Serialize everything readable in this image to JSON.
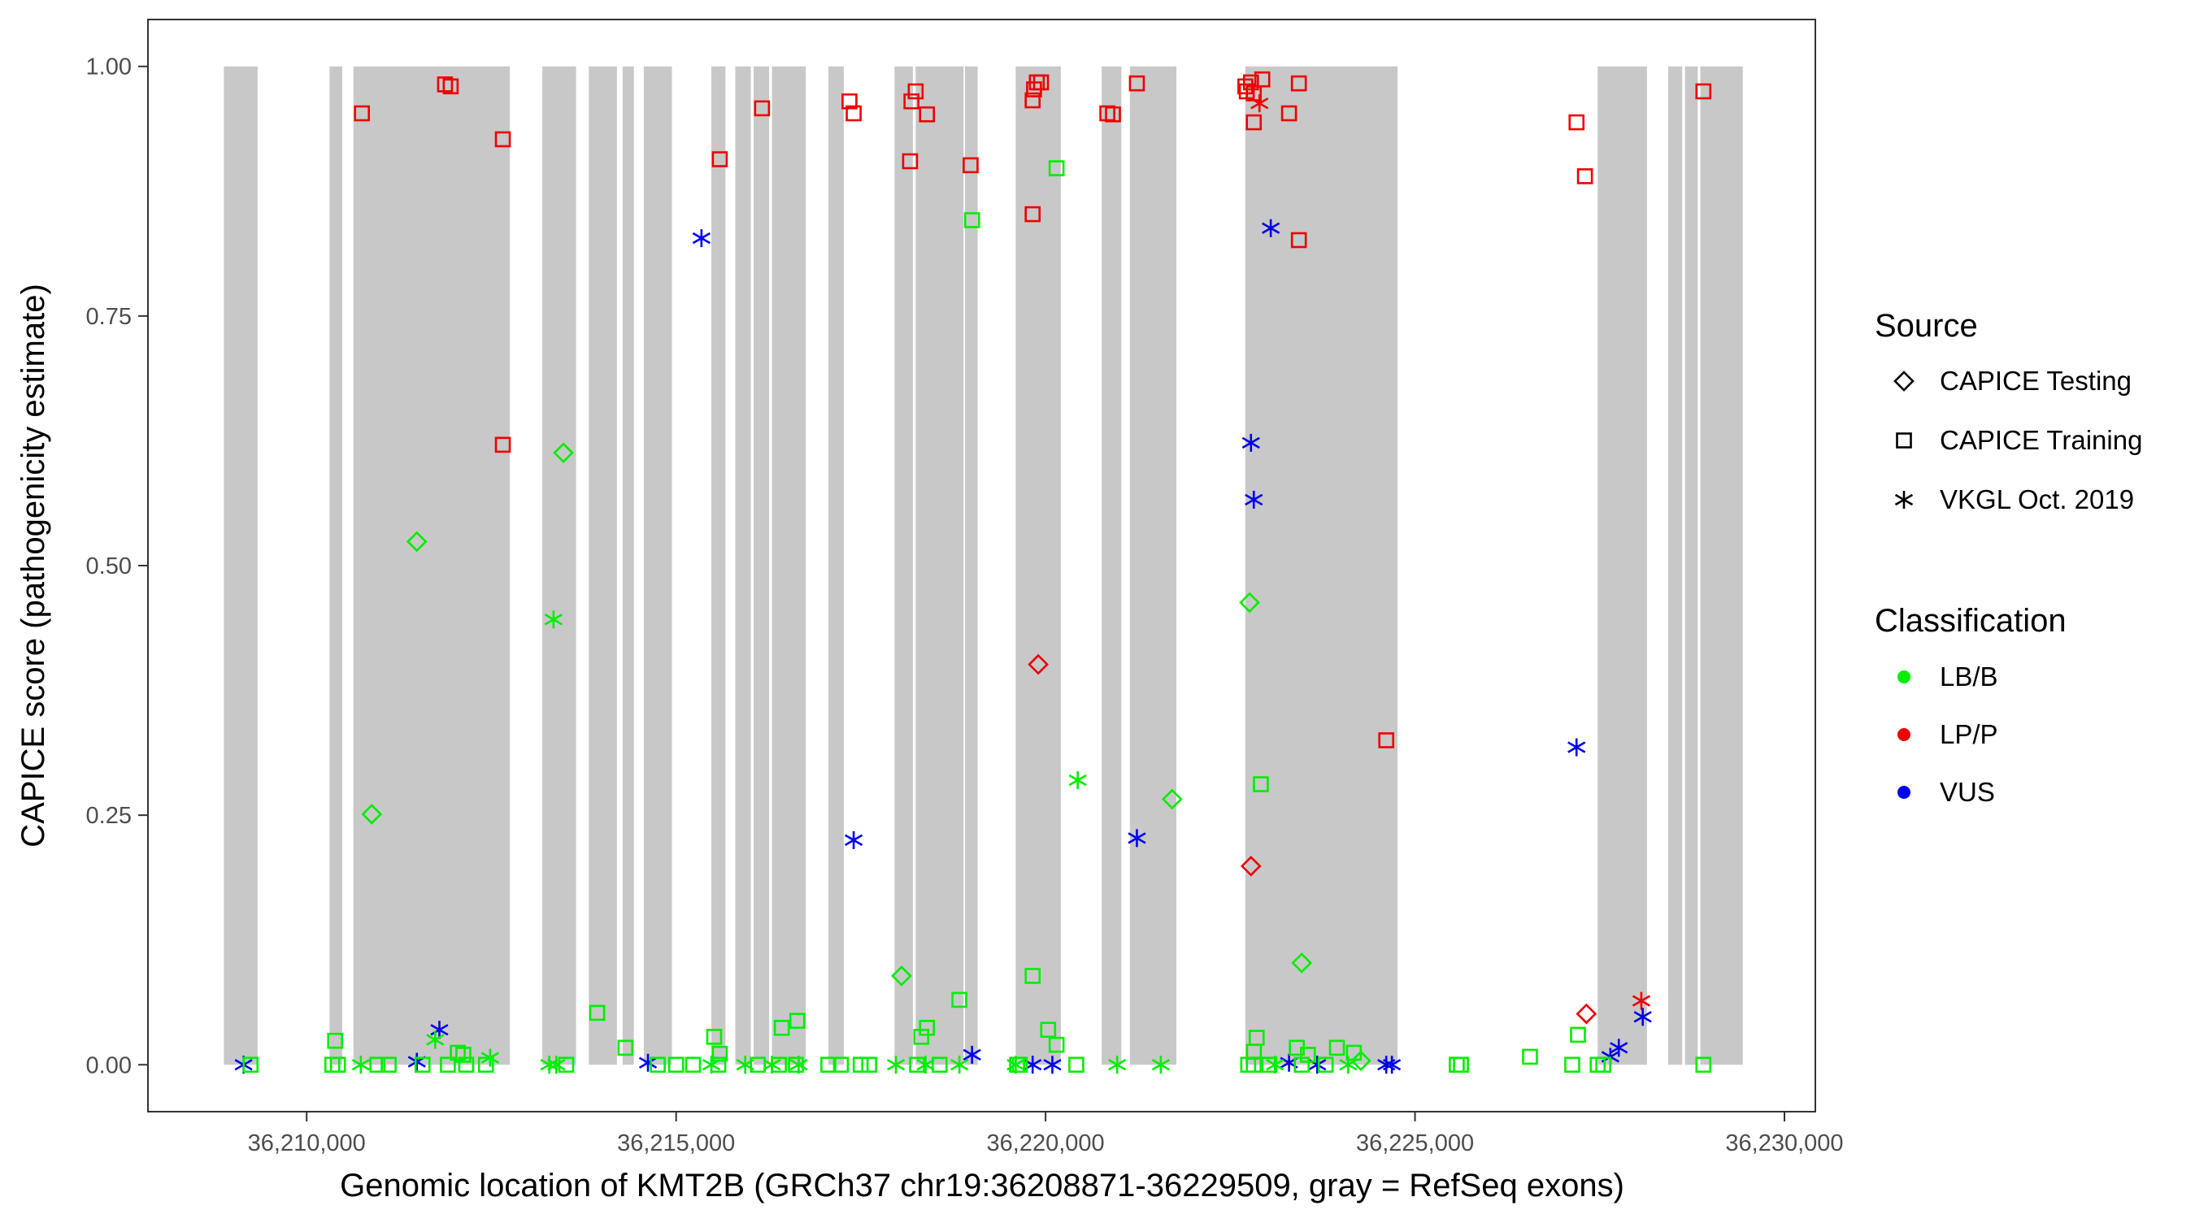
{
  "chart_data": {
    "type": "scatter",
    "title": "",
    "xlabel": "Genomic location of KMT2B (GRCh37 chr19:36208871-36229509, gray = RefSeq exons)",
    "ylabel": "CAPICE score (pathogenicity estimate)",
    "xlim": [
      36207852,
      36230418
    ],
    "ylim": [
      -0.047,
      1.047
    ],
    "x_ticks": [
      36210000,
      36215000,
      36220000,
      36225000,
      36230000
    ],
    "x_tick_labels": [
      "36,210,000",
      "36,215,000",
      "36,220,000",
      "36,225,000",
      "36,230,000"
    ],
    "y_ticks": [
      0,
      0.25,
      0.5,
      0.75,
      1.0
    ],
    "y_tick_labels": [
      "0.00",
      "0.25",
      "0.50",
      "0.75",
      "1.00"
    ],
    "grid": false,
    "legend_position": "right",
    "legend": {
      "source_title": "Source",
      "sources": [
        {
          "key": "testing",
          "label": "CAPICE Testing",
          "shape": "diamond"
        },
        {
          "key": "training",
          "label": "CAPICE Training",
          "shape": "square"
        },
        {
          "key": "vkgl",
          "label": "VKGL Oct. 2019",
          "shape": "asterisk"
        }
      ],
      "classification_title": "Classification",
      "classes": [
        {
          "key": "LB/B",
          "label": "LB/B",
          "color": "#00ee00"
        },
        {
          "key": "LP/P",
          "label": "LP/P",
          "color": "#ee0000"
        },
        {
          "key": "VUS",
          "label": "VUS",
          "color": "#0000ee"
        }
      ]
    },
    "exon_color": "#c8c8c8",
    "exons": [
      [
        36208879,
        36209336
      ],
      [
        36210309,
        36210481
      ],
      [
        36210633,
        36212750
      ],
      [
        36213189,
        36213646
      ],
      [
        36213818,
        36214199
      ],
      [
        36214276,
        36214428
      ],
      [
        36214562,
        36214943
      ],
      [
        36215477,
        36215668
      ],
      [
        36215801,
        36216011
      ],
      [
        36216049,
        36216259
      ],
      [
        36216297,
        36216755
      ],
      [
        36217060,
        36217269
      ],
      [
        36217956,
        36218204
      ],
      [
        36218242,
        36218890
      ],
      [
        36218909,
        36219081
      ],
      [
        36219596,
        36220206
      ],
      [
        36220759,
        36221026
      ],
      [
        36221141,
        36221770
      ],
      [
        36222704,
        36224764
      ],
      [
        36227472,
        36228139
      ],
      [
        36228426,
        36228616
      ],
      [
        36228654,
        36228826
      ],
      [
        36228862,
        36229436
      ]
    ],
    "series": [
      {
        "source": "training",
        "class": "LP/P",
        "points": [
          [
            36210748,
            0.953
          ],
          [
            36211873,
            0.982
          ],
          [
            36211949,
            0.98
          ],
          [
            36212655,
            0.927
          ],
          [
            36212655,
            0.621
          ],
          [
            36215591,
            0.907
          ],
          [
            36216163,
            0.958
          ],
          [
            36217346,
            0.965
          ],
          [
            36217403,
            0.953
          ],
          [
            36218166,
            0.905
          ],
          [
            36218185,
            0.965
          ],
          [
            36218242,
            0.975
          ],
          [
            36218395,
            0.952
          ],
          [
            36218986,
            0.901
          ],
          [
            36219825,
            0.852
          ],
          [
            36219825,
            0.966
          ],
          [
            36219844,
            0.977
          ],
          [
            36219882,
            0.984
          ],
          [
            36219939,
            0.984
          ],
          [
            36220836,
            0.953
          ],
          [
            36220912,
            0.952
          ],
          [
            36221236,
            0.983
          ],
          [
            36222704,
            0.98
          ],
          [
            36222723,
            0.975
          ],
          [
            36222780,
            0.984
          ],
          [
            36222818,
            0.973
          ],
          [
            36222818,
            0.944
          ],
          [
            36222933,
            0.987
          ],
          [
            36223295,
            0.953
          ],
          [
            36223428,
            0.983
          ],
          [
            36223428,
            0.826
          ],
          [
            36224611,
            0.325
          ],
          [
            36227186,
            0.944
          ],
          [
            36227300,
            0.89
          ],
          [
            36228903,
            0.975
          ]
        ]
      },
      {
        "source": "testing",
        "class": "LP/P",
        "points": [
          [
            36219901,
            0.401
          ],
          [
            36222780,
            0.199
          ],
          [
            36227319,
            0.051
          ]
        ]
      },
      {
        "source": "vkgl",
        "class": "LP/P",
        "points": [
          [
            36222895,
            0.963
          ],
          [
            36228063,
            0.064
          ]
        ]
      },
      {
        "source": "vkgl",
        "class": "VUS",
        "points": [
          [
            36209146,
            0.0
          ],
          [
            36211491,
            0.003
          ],
          [
            36211796,
            0.035
          ],
          [
            36214619,
            0.002
          ],
          [
            36215343,
            0.828
          ],
          [
            36217403,
            0.225
          ],
          [
            36219005,
            0.01
          ],
          [
            36219825,
            0.0
          ],
          [
            36220092,
            0.0
          ],
          [
            36221236,
            0.227
          ],
          [
            36222780,
            0.623
          ],
          [
            36222818,
            0.566
          ],
          [
            36223048,
            0.838
          ],
          [
            36223295,
            0.002
          ],
          [
            36223677,
            0.0
          ],
          [
            36224611,
            0.0
          ],
          [
            36224687,
            0.0
          ],
          [
            36227186,
            0.318
          ],
          [
            36227644,
            0.008
          ],
          [
            36227758,
            0.017
          ],
          [
            36228082,
            0.048
          ]
        ]
      },
      {
        "source": "testing",
        "class": "LB/B",
        "points": [
          [
            36210881,
            0.251
          ],
          [
            36211491,
            0.524
          ],
          [
            36213475,
            0.613
          ],
          [
            36218051,
            0.089
          ],
          [
            36221713,
            0.266
          ],
          [
            36222761,
            0.463
          ],
          [
            36223467,
            0.102
          ],
          [
            36224267,
            0.004
          ]
        ]
      },
      {
        "source": "vkgl",
        "class": "LB/B",
        "points": [
          [
            36213341,
            0.446
          ],
          [
            36211739,
            0.025
          ],
          [
            36220435,
            0.285
          ],
          [
            36210733,
            0.0
          ],
          [
            36212483,
            0.007
          ],
          [
            36213284,
            0.0
          ],
          [
            36213379,
            0.0
          ],
          [
            36215477,
            0.0
          ],
          [
            36215935,
            0.0
          ],
          [
            36216297,
            0.0
          ],
          [
            36216659,
            0.0
          ],
          [
            36217975,
            0.0
          ],
          [
            36218376,
            0.0
          ],
          [
            36218834,
            0.0
          ],
          [
            36219596,
            0.0
          ],
          [
            36220969,
            0.0
          ],
          [
            36221560,
            0.0
          ],
          [
            36223105,
            0.0
          ],
          [
            36224096,
            0.0
          ]
        ]
      },
      {
        "source": "training",
        "class": "LB/B",
        "points": [
          [
            36210385,
            0.024
          ],
          [
            36213932,
            0.052
          ],
          [
            36214314,
            0.017
          ],
          [
            36215515,
            0.028
          ],
          [
            36215591,
            0.011
          ],
          [
            36216430,
            0.037
          ],
          [
            36216640,
            0.044
          ],
          [
            36218318,
            0.028
          ],
          [
            36218395,
            0.037
          ],
          [
            36218834,
            0.065
          ],
          [
            36219005,
            0.846
          ],
          [
            36219825,
            0.089
          ],
          [
            36220035,
            0.035
          ],
          [
            36220149,
            0.02
          ],
          [
            36220149,
            0.898
          ],
          [
            36222857,
            0.027
          ],
          [
            36222914,
            0.281
          ],
          [
            36222820,
            0.013
          ],
          [
            36223400,
            0.017
          ],
          [
            36223550,
            0.01
          ],
          [
            36223943,
            0.017
          ],
          [
            36224172,
            0.012
          ],
          [
            36226556,
            0.008
          ],
          [
            36227205,
            0.03
          ],
          [
            36212045,
            0.012
          ],
          [
            36212120,
            0.01
          ],
          [
            36209241,
            0.0
          ],
          [
            36210347,
            0.0
          ],
          [
            36210423,
            0.0
          ],
          [
            36210957,
            0.0
          ],
          [
            36211110,
            0.0
          ],
          [
            36211568,
            0.0
          ],
          [
            36211911,
            0.0
          ],
          [
            36212159,
            0.0
          ],
          [
            36212426,
            0.0
          ],
          [
            36213513,
            0.0
          ],
          [
            36214752,
            0.0
          ],
          [
            36215000,
            0.0
          ],
          [
            36215229,
            0.0
          ],
          [
            36215572,
            0.0
          ],
          [
            36216106,
            0.0
          ],
          [
            36216392,
            0.0
          ],
          [
            36216621,
            0.0
          ],
          [
            36217060,
            0.0
          ],
          [
            36217231,
            0.0
          ],
          [
            36217498,
            0.0
          ],
          [
            36217613,
            0.0
          ],
          [
            36218261,
            0.0
          ],
          [
            36218566,
            0.0
          ],
          [
            36219615,
            0.0
          ],
          [
            36219653,
            0.0
          ],
          [
            36220416,
            0.0
          ],
          [
            36222742,
            0.0
          ],
          [
            36222818,
            0.0
          ],
          [
            36223028,
            0.0
          ],
          [
            36223467,
            0.0
          ],
          [
            36223791,
            0.0
          ],
          [
            36225565,
            0.0
          ],
          [
            36225622,
            0.0
          ],
          [
            36227128,
            0.0
          ],
          [
            36227472,
            0.0
          ],
          [
            36227548,
            0.0
          ],
          [
            36228903,
            0.0
          ]
        ]
      }
    ]
  }
}
